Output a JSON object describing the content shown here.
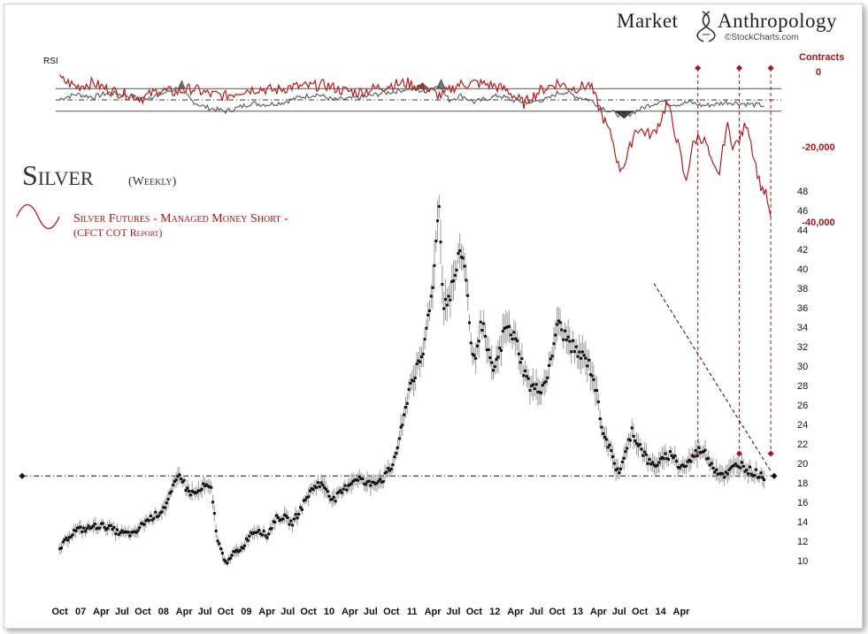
{
  "branding": {
    "name_left": "Market",
    "name_right": "Anthropology",
    "credit": "©StockCharts.com"
  },
  "colors": {
    "price": "#111111",
    "price_range": "#9a9a9a",
    "short": "#b51a1a",
    "rsi": "#555555",
    "guides": "#a31516"
  },
  "chart_data": [
    {
      "type": "line",
      "title": "Silver",
      "subtitle": "(Weekly)",
      "legend": {
        "label": "Silver Futures - Managed Money Short -",
        "sublabel": "(CFCT COT Report)"
      },
      "ylabel": "",
      "ylim": [
        9,
        49
      ],
      "yticks": [
        10,
        12,
        14,
        16,
        18,
        20,
        22,
        24,
        26,
        28,
        30,
        32,
        34,
        36,
        38,
        40,
        42,
        44,
        46,
        48
      ],
      "xlabels": [
        "Oct",
        "07",
        "Apr",
        "Jul",
        "Oct",
        "08",
        "Apr",
        "Jul",
        "Oct",
        "09",
        "Apr",
        "Jul",
        "Oct",
        "10",
        "Apr",
        "Jul",
        "Oct",
        "11",
        "Apr",
        "Jul",
        "Oct",
        "12",
        "Apr",
        "Jul",
        "Oct",
        "13",
        "Apr",
        "Jul",
        "Oct",
        "14",
        "Apr"
      ],
      "xlim": [
        2006.7,
        2015.35
      ],
      "series": [
        {
          "name": "Silver weekly close",
          "x": [
            2006.75,
            2006.85,
            2006.95,
            2007.05,
            2007.15,
            2007.25,
            2007.35,
            2007.45,
            2007.55,
            2007.65,
            2007.75,
            2007.85,
            2007.95,
            2008.05,
            2008.12,
            2008.2,
            2008.28,
            2008.35,
            2008.42,
            2008.5,
            2008.58,
            2008.65,
            2008.72,
            2008.78,
            2008.85,
            2008.95,
            2009.05,
            2009.15,
            2009.25,
            2009.35,
            2009.45,
            2009.55,
            2009.65,
            2009.75,
            2009.85,
            2009.95,
            2010.05,
            2010.15,
            2010.25,
            2010.35,
            2010.45,
            2010.55,
            2010.65,
            2010.75,
            2010.82,
            2010.9,
            2010.97,
            2011.05,
            2011.12,
            2011.2,
            2011.27,
            2011.32,
            2011.38,
            2011.45,
            2011.52,
            2011.6,
            2011.67,
            2011.72,
            2011.75,
            2011.8,
            2011.85,
            2011.9,
            2011.97,
            2012.05,
            2012.12,
            2012.2,
            2012.28,
            2012.35,
            2012.42,
            2012.5,
            2012.58,
            2012.67,
            2012.75,
            2012.82,
            2012.9,
            2012.97,
            2013.05,
            2013.12,
            2013.2,
            2013.28,
            2013.3,
            2013.35,
            2013.4,
            2013.45,
            2013.5,
            2013.55,
            2013.6,
            2013.65,
            2013.7,
            2013.75,
            2013.82,
            2013.88,
            2013.95,
            2014.02,
            2014.08,
            2014.15,
            2014.2,
            2014.25,
            2014.3,
            2014.35,
            2014.42,
            2014.5,
            2014.58,
            2014.65,
            2014.72,
            2014.8,
            2014.87,
            2014.95,
            2015.02,
            2015.1,
            2015.18,
            2015.25
          ],
          "values": [
            11.2,
            12.4,
            13.2,
            13.2,
            13.5,
            13.6,
            13.4,
            12.9,
            12.8,
            12.7,
            13.8,
            14.4,
            14.9,
            16.0,
            17.5,
            19.0,
            17.3,
            16.9,
            17.0,
            17.7,
            17.2,
            12.2,
            10.4,
            9.8,
            10.8,
            11.3,
            12.8,
            13.2,
            12.5,
            14.3,
            14.5,
            13.8,
            15.2,
            16.8,
            17.9,
            17.6,
            16.2,
            17.0,
            18.0,
            18.6,
            17.8,
            18.2,
            18.4,
            19.5,
            21.5,
            24.5,
            28.0,
            29.5,
            30.5,
            35.5,
            40.0,
            47.5,
            36.5,
            37.0,
            39.5,
            42.0,
            38.0,
            31.0,
            30.5,
            33.0,
            34.5,
            31.8,
            29.5,
            31.0,
            34.0,
            33.5,
            32.0,
            29.5,
            28.0,
            27.6,
            27.9,
            30.0,
            34.5,
            33.4,
            32.5,
            31.5,
            31.0,
            30.5,
            28.5,
            24.5,
            23.5,
            22.5,
            21.0,
            19.8,
            19.2,
            20.2,
            21.5,
            23.5,
            22.5,
            21.8,
            20.7,
            19.8,
            20.0,
            20.2,
            20.8,
            21.0,
            19.9,
            19.7,
            19.8,
            20.2,
            21.0,
            21.5,
            20.5,
            19.5,
            19.0,
            18.8,
            19.5,
            20.0,
            19.6,
            19.1,
            18.9,
            18.7
          ]
        }
      ],
      "annotations": {
        "support_level": 18.7,
        "trendline": [
          [
            2013.92,
            38.5
          ],
          [
            2015.33,
            19.2
          ]
        ]
      }
    },
    {
      "type": "line",
      "title": "RSI",
      "ylim": [
        0,
        100
      ],
      "levels": [
        70,
        50,
        30
      ],
      "series": [
        {
          "name": "RSI",
          "x": [
            2006.75,
            2006.95,
            2007.15,
            2007.35,
            2007.55,
            2007.75,
            2007.95,
            2008.05,
            2008.15,
            2008.2,
            2008.25,
            2008.35,
            2008.45,
            2008.6,
            2008.75,
            2008.9,
            2009.05,
            2009.25,
            2009.45,
            2009.65,
            2009.85,
            2010.05,
            2010.25,
            2010.45,
            2010.65,
            2010.8,
            2010.95,
            2011.1,
            2011.2,
            2011.3,
            2011.34,
            2011.38,
            2011.45,
            2011.6,
            2011.75,
            2011.9,
            2012.05,
            2012.2,
            2012.35,
            2012.5,
            2012.65,
            2012.75,
            2012.85,
            2013.0,
            2013.15,
            2013.28,
            2013.38,
            2013.48,
            2013.55,
            2013.7,
            2013.85,
            2014.0,
            2014.1,
            2014.2,
            2014.35,
            2014.5,
            2014.65,
            2014.8,
            2014.95,
            2015.1,
            2015.25
          ],
          "values": [
            52,
            60,
            55,
            63,
            58,
            52,
            60,
            64,
            70,
            76,
            62,
            48,
            40,
            34,
            30,
            36,
            44,
            42,
            46,
            55,
            60,
            50,
            52,
            56,
            62,
            65,
            70,
            66,
            70,
            74,
            78,
            62,
            50,
            58,
            46,
            52,
            58,
            50,
            46,
            48,
            52,
            62,
            64,
            55,
            50,
            38,
            30,
            25,
            20,
            30,
            40,
            48,
            44,
            42,
            46,
            40,
            42,
            46,
            44,
            42,
            40
          ]
        },
        {
          "name": "Managed Money Short",
          "x": [
            2006.75,
            2006.95,
            2007.15,
            2007.35,
            2007.55,
            2007.75,
            2007.95,
            2008.15,
            2008.35,
            2008.55,
            2008.75,
            2008.95,
            2009.15,
            2009.35,
            2009.55,
            2009.75,
            2009.95,
            2010.15,
            2010.35,
            2010.55,
            2010.75,
            2010.95,
            2011.15,
            2011.35,
            2011.55,
            2011.75,
            2011.95,
            2012.15,
            2012.35,
            2012.55,
            2012.75,
            2012.95,
            2013.15,
            2013.3,
            2013.42,
            2013.5,
            2013.58,
            2013.7,
            2013.8,
            2013.9,
            2014.0,
            2014.08,
            2014.16,
            2014.24,
            2014.3,
            2014.38,
            2014.46,
            2014.55,
            2014.62,
            2014.7,
            2014.8,
            2014.88,
            2014.96,
            2015.04,
            2015.12,
            2015.2,
            2015.28,
            2015.33
          ],
          "contracts": [
            -2000,
            -4000,
            -3000,
            -5000,
            -6000,
            -7000,
            -5000,
            -5500,
            -4500,
            -6000,
            -6500,
            -5000,
            -4500,
            -5000,
            -4000,
            -4000,
            -3500,
            -5000,
            -5500,
            -4500,
            -3500,
            -3000,
            -4500,
            -6500,
            -3500,
            -3000,
            -3500,
            -5000,
            -8500,
            -5000,
            -3000,
            -4500,
            -3500,
            -12000,
            -18000,
            -26000,
            -24000,
            -15000,
            -16000,
            -17000,
            -13000,
            -8000,
            -15000,
            -22000,
            -30000,
            -20000,
            -17000,
            -19000,
            -25000,
            -28000,
            -14000,
            -20000,
            -18000,
            -13000,
            -22000,
            -30000,
            -33000,
            -40000
          ]
        }
      ],
      "right_axis": {
        "label": "Contracts",
        "ticks": [
          "0",
          "-20,000",
          "-40,000"
        ],
        "values": [
          0,
          -20000,
          -40000
        ]
      },
      "event_markers_x": [
        2014.45,
        2014.95,
        2015.33
      ]
    }
  ]
}
